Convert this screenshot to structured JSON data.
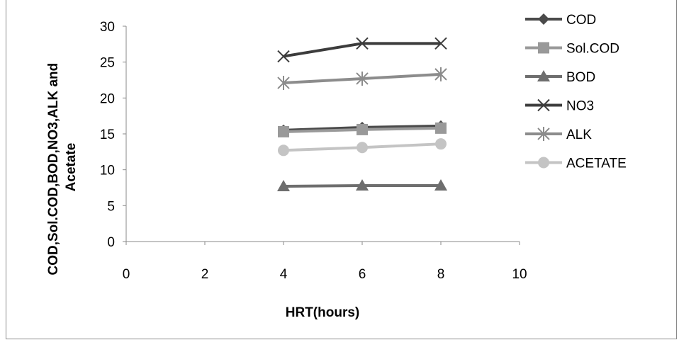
{
  "chart_data": {
    "type": "scatter",
    "title": "",
    "xlabel": "HRT(hours)",
    "ylabel": "COD,Sol.COD,BOD,NO3,ALK and Acetate",
    "xlim": [
      0,
      10
    ],
    "ylim": [
      0,
      30
    ],
    "xticks": [
      0,
      2,
      4,
      6,
      8,
      10
    ],
    "yticks": [
      0,
      5,
      10,
      15,
      20,
      25,
      30
    ],
    "grid": false,
    "legend_position": "right",
    "x": [
      4,
      6,
      8
    ],
    "series": [
      {
        "name": "COD",
        "values": [
          15.5,
          15.9,
          16.1
        ],
        "marker": "diamond",
        "color": "#4a4a4a"
      },
      {
        "name": "Sol.COD",
        "values": [
          15.3,
          15.6,
          15.8
        ],
        "marker": "square",
        "color": "#999999"
      },
      {
        "name": "BOD",
        "values": [
          7.7,
          7.8,
          7.8
        ],
        "marker": "triangle",
        "color": "#6e6e6e"
      },
      {
        "name": "NO3",
        "values": [
          25.8,
          27.6,
          27.6
        ],
        "marker": "x",
        "color": "#3c3c3c"
      },
      {
        "name": "ALK",
        "values": [
          22.1,
          22.7,
          23.3
        ],
        "marker": "star",
        "color": "#8c8c8c"
      },
      {
        "name": "ACETATE",
        "values": [
          12.7,
          13.1,
          13.6
        ],
        "marker": "circle",
        "color": "#c4c4c4"
      }
    ]
  }
}
